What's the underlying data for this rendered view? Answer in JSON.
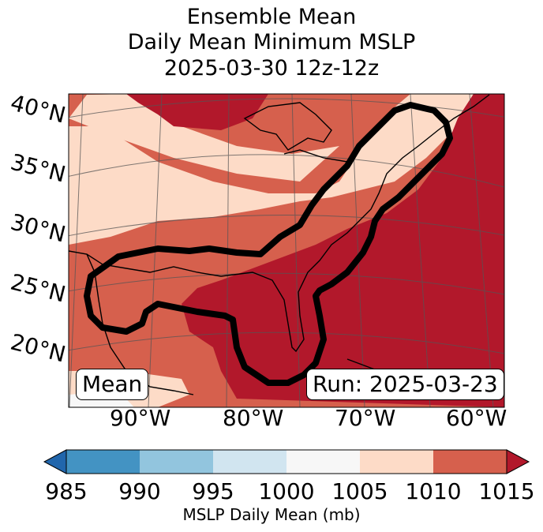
{
  "title": {
    "line1": "Ensemble Mean",
    "line2": "Daily Mean Minimum MSLP",
    "line3": "2025-03-30 12z-12z"
  },
  "map": {
    "lat_labels": [
      "40°N",
      "35°N",
      "30°N",
      "25°N",
      "20°N"
    ],
    "lon_labels": [
      "90°W",
      "80°W",
      "70°W",
      "60°W"
    ],
    "mean_label": "Mean",
    "run_label": "Run: 2025-03-23"
  },
  "colorbar": {
    "ticks": [
      "985",
      "990",
      "995",
      "1000",
      "1005",
      "1010",
      "1015"
    ],
    "label": "MSLP Daily Mean (mb)",
    "colors": [
      "#2166ac",
      "#4393c3",
      "#92c5de",
      "#d1e5f0",
      "#f7f7f7",
      "#fddbc7",
      "#d6604d",
      "#b2182b"
    ]
  }
}
